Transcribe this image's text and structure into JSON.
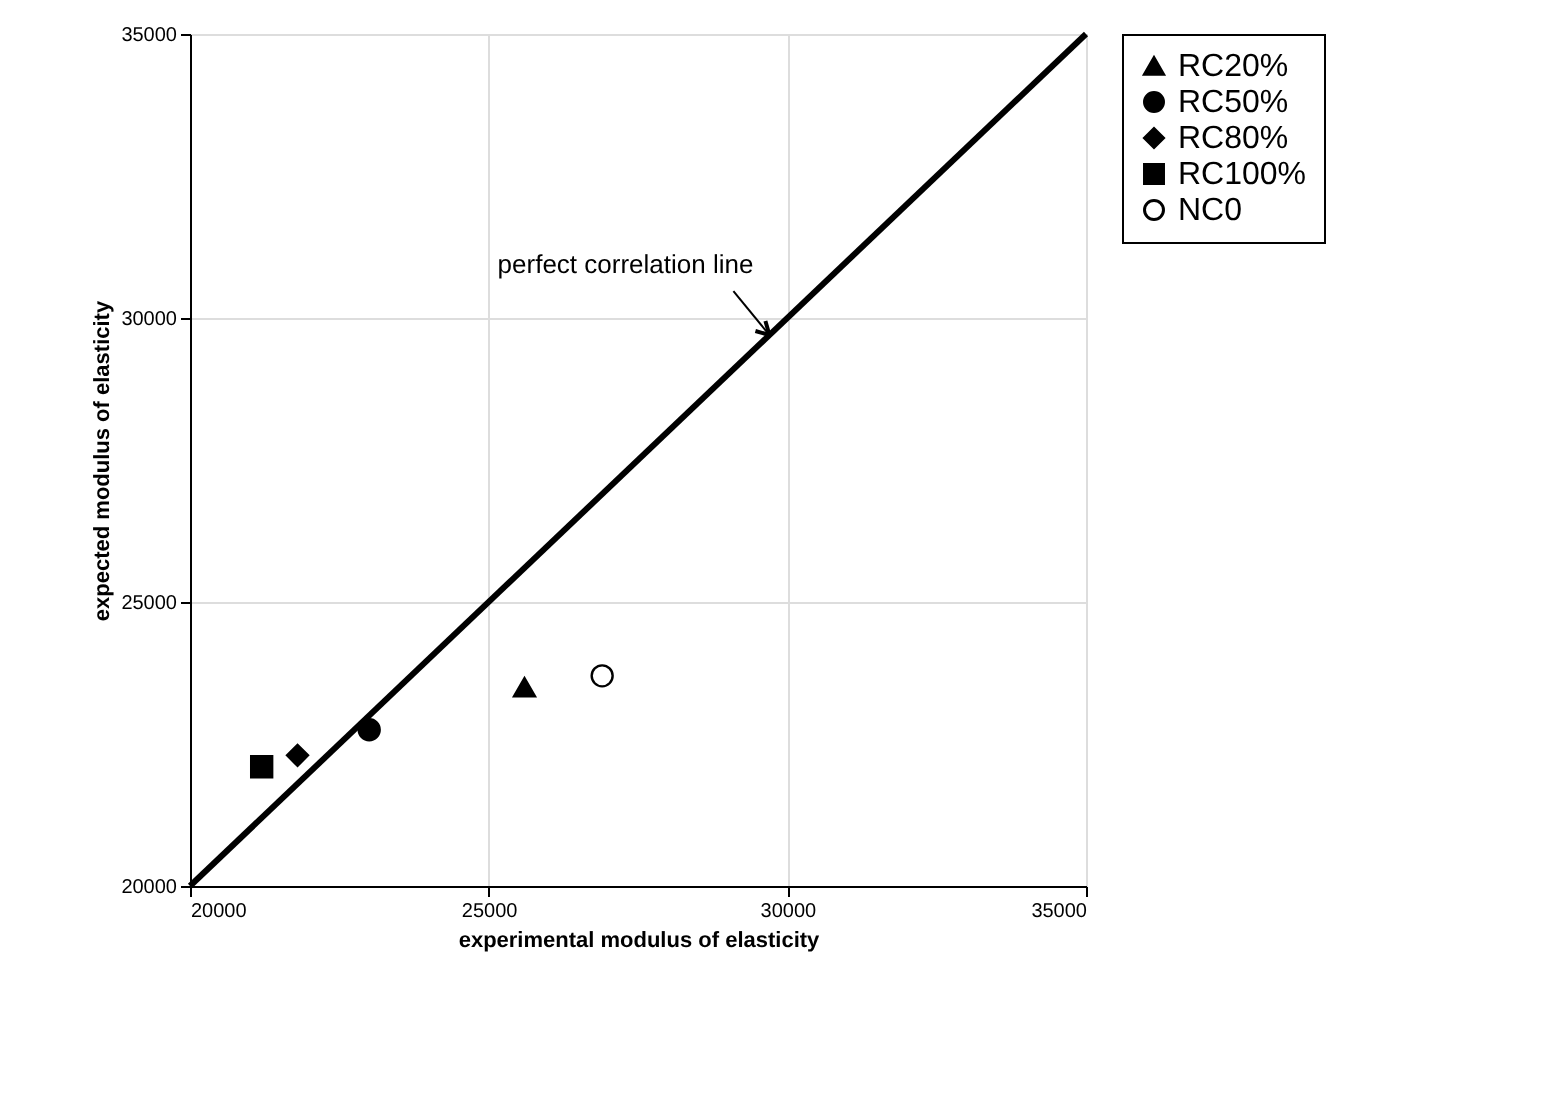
{
  "chart_data": {
    "type": "scatter",
    "xlabel": "experimental modulus of elasticity",
    "ylabel": "expected modulus of elasticity",
    "xlim": [
      20000,
      35000
    ],
    "ylim": [
      20000,
      35000
    ],
    "xticks": [
      20000,
      25000,
      30000,
      35000
    ],
    "yticks": [
      20000,
      25000,
      30000,
      35000
    ],
    "grid": true,
    "legend": "right",
    "series": [
      {
        "name": "RC20%",
        "color": "#000000",
        "marker": "triangle",
        "x": [
          25600
        ],
        "values": [
          23500
        ]
      },
      {
        "name": "RC50%",
        "color": "#000000",
        "marker": "circle",
        "x": [
          23000
        ],
        "values": [
          22750
        ]
      },
      {
        "name": "RC80%",
        "color": "#000000",
        "marker": "diamond",
        "x": [
          21800
        ],
        "values": [
          22300
        ]
      },
      {
        "name": "RC100%",
        "color": "#000000",
        "marker": "square",
        "x": [
          21200
        ],
        "values": [
          22100
        ]
      },
      {
        "name": "NC0",
        "color": "#ffffff",
        "marker": "circle",
        "x": [
          26900
        ],
        "values": [
          23700
        ]
      },
      {
        "type": "line",
        "color": "#000000",
        "line_style": "solid",
        "x": [
          20000,
          35000
        ],
        "values": [
          20000,
          35000
        ]
      }
    ],
    "annotations": [
      {
        "text": "perfect correlation line",
        "x": 29700,
        "y": 29700
      }
    ]
  }
}
